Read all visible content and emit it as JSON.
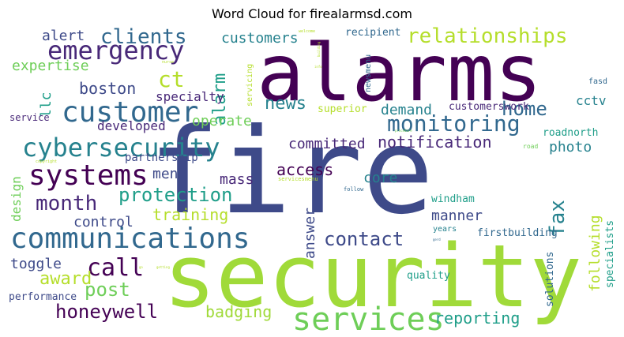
{
  "title": "Word Cloud for firealarmsd.com",
  "palette": {
    "dark_purple": "#440154",
    "purple": "#482878",
    "indigo": "#3e4a89",
    "blue": "#31688e",
    "teal": "#26828e",
    "cyan_green": "#1f9e89",
    "green": "#35b779",
    "light_green": "#6ece58",
    "lime": "#b5de2b",
    "yellow_green": "#a0da39"
  },
  "words": [
    "fire",
    "alarms",
    "security",
    "services",
    "communications",
    "customer",
    "systems",
    "cybersecurity",
    "emergency",
    "monitoring",
    "relationships",
    "clients",
    "ct",
    "month",
    "protection",
    "contact",
    "call",
    "home",
    "honeywell",
    "boston",
    "alarm",
    "news",
    "access",
    "fax",
    "post",
    "award",
    "notification",
    "expertise",
    "photo",
    "alert",
    "customers",
    "training",
    "reporting",
    "badging",
    "committed",
    "developed",
    "operate",
    "menu",
    "core",
    "mass",
    "answer",
    "control",
    "manner",
    "following",
    "demand",
    "toggle",
    "specialty",
    "partnership",
    "cctv",
    "llc",
    "design",
    "customerswork",
    "superior",
    "roadnorth",
    "windham",
    "quality",
    "solutions",
    "specialists",
    "firstbuilding",
    "performance",
    "service",
    "recipient",
    "years",
    "fasd",
    "servicing",
    "newsmenu",
    "servicesmenu",
    "follow",
    "welcome",
    "road",
    "nurse",
    "copyright",
    "info",
    "building",
    "getting",
    "go",
    "gerd",
    "procedure"
  ]
}
